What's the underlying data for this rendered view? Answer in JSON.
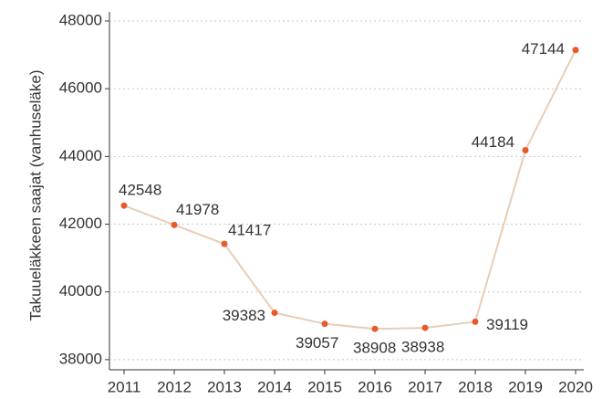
{
  "chart_data": {
    "type": "line",
    "y_label": "Takuueläkkeen saajat (vanhuseläke)",
    "categories": [
      "2011",
      "2012",
      "2013",
      "2014",
      "2015",
      "2016",
      "2017",
      "2018",
      "2019",
      "2020"
    ],
    "series": [
      {
        "color": "#e8cdb7",
        "marker_color": "#e85a2a",
        "values": [
          42548,
          41978,
          41417,
          39383,
          39057,
          38908,
          38938,
          39119,
          44184,
          47144
        ]
      }
    ],
    "ylim": [
      37700,
      48270
    ],
    "yticks": [
      38000,
      40000,
      42000,
      44000,
      46000,
      48000
    ],
    "grid": true
  }
}
